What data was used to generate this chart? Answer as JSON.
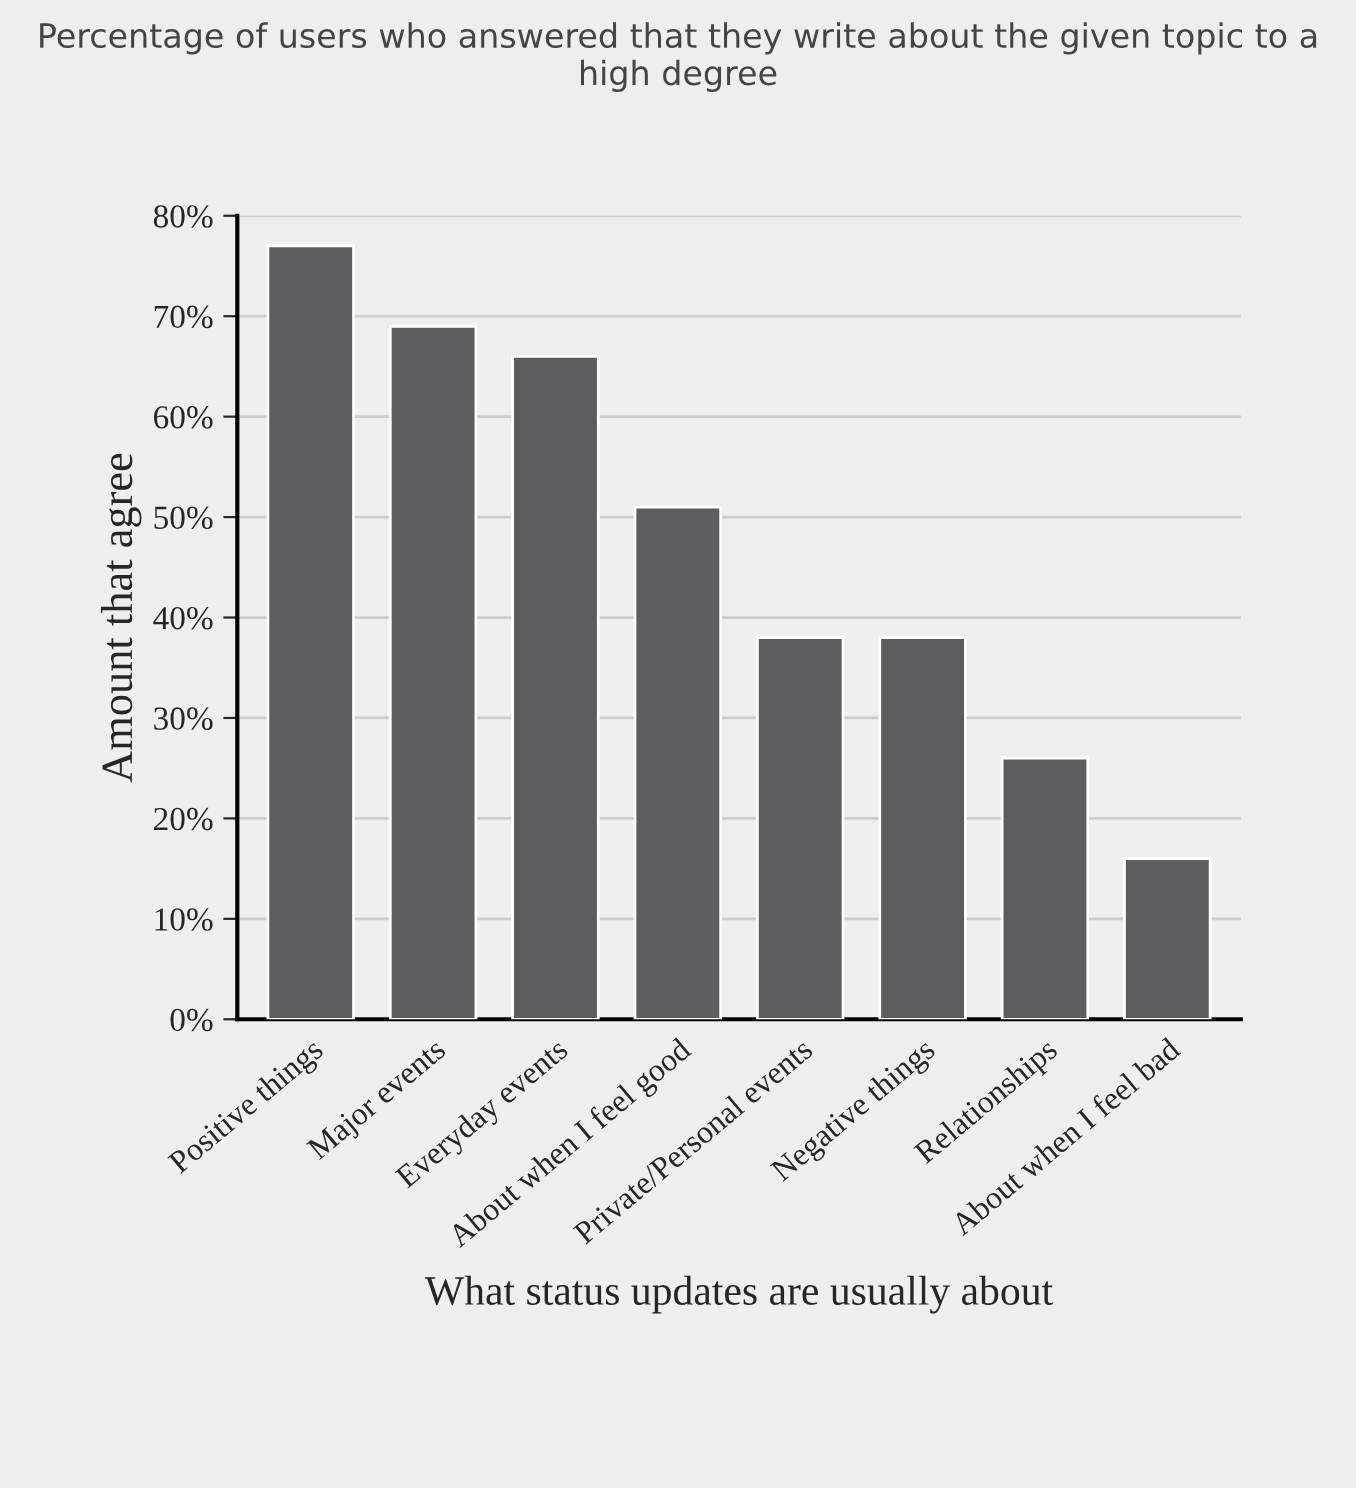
{
  "chart_data": {
    "type": "bar",
    "title": "Percentage of users who answered that they write about the given topic to a high degree",
    "xlabel": "What status updates are usually about",
    "ylabel": "Amount that agree",
    "categories": [
      "Positive things",
      "Major events",
      "Everyday events",
      "About when I feel good",
      "Private/Personal events",
      "Negative things",
      "Relationships",
      "About when I feel bad"
    ],
    "values": [
      77,
      69,
      66,
      51,
      38,
      38,
      26,
      16
    ],
    "color": "#5d5c5e",
    "ylim": [
      0,
      80
    ],
    "yticks": [
      {
        "value": 0,
        "label": "0%"
      },
      {
        "value": 10,
        "label": "10%"
      },
      {
        "value": 20,
        "label": "20%"
      },
      {
        "value": 30,
        "label": "30%"
      },
      {
        "value": 40,
        "label": "40%"
      },
      {
        "value": 50,
        "label": "50%"
      },
      {
        "value": 60,
        "label": "60%"
      },
      {
        "value": 70,
        "label": "70%"
      },
      {
        "value": 80,
        "label": "80%"
      }
    ],
    "grid": "y"
  }
}
